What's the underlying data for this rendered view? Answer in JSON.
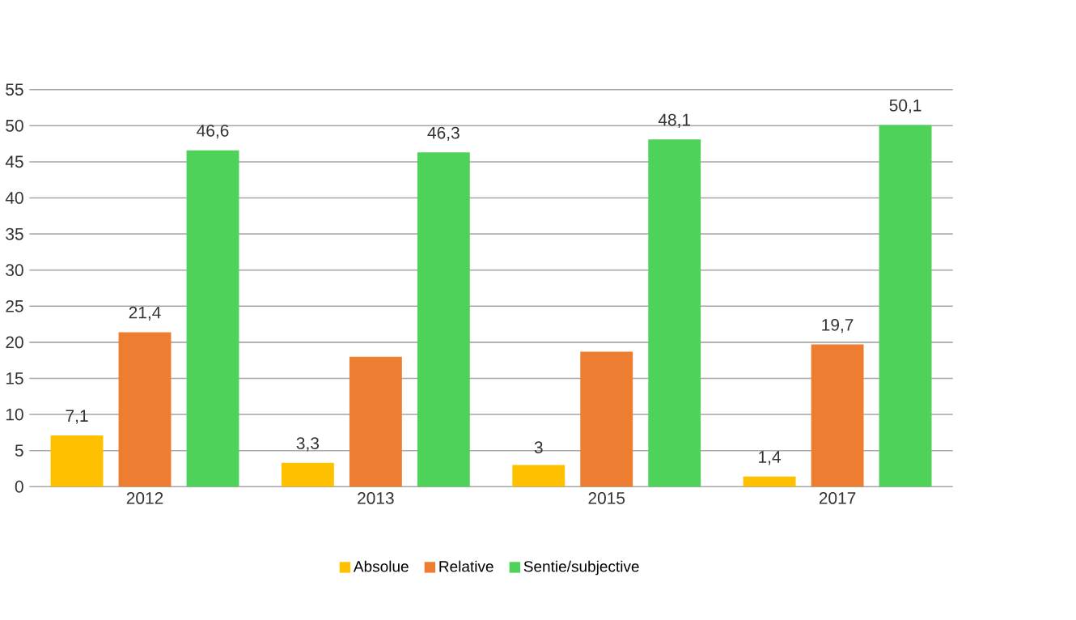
{
  "chart_data": {
    "type": "bar",
    "categories": [
      "2012",
      "2013",
      "2015",
      "2017"
    ],
    "series": [
      {
        "name": "Absolue",
        "color": "#ffc000",
        "values": [
          7.1,
          3.3,
          3,
          1.4
        ],
        "value_labels": [
          "7,1",
          "3,3",
          "3",
          "1,4"
        ]
      },
      {
        "name": "Relative",
        "color": "#ed7d31",
        "values": [
          21.4,
          18,
          18.7,
          19.7
        ],
        "value_labels": [
          "21,4",
          null,
          null,
          "19,7"
        ]
      },
      {
        "name": "Sentie/subjective",
        "color": "#4fd25a",
        "values": [
          46.6,
          46.3,
          48.1,
          50.1
        ],
        "value_labels": [
          "46,6",
          "46,3",
          "48,1",
          "50,1"
        ]
      }
    ],
    "ylim": [
      0,
      55
    ],
    "yticks": [
      0,
      5,
      10,
      15,
      20,
      25,
      30,
      35,
      40,
      45,
      50,
      55
    ],
    "grid": "y",
    "legend": "bottom"
  }
}
